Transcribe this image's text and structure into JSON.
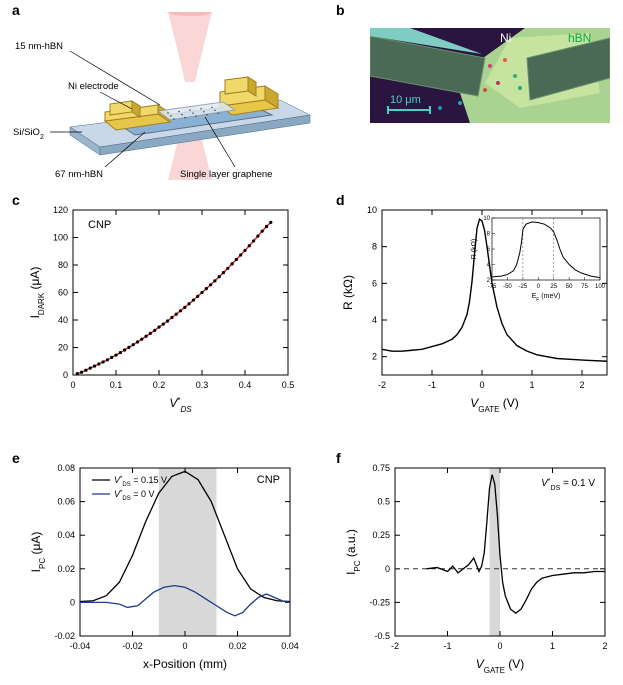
{
  "colors": {
    "bg": "#ffffff",
    "axis": "#000000",
    "line_black": "#000000",
    "line_blue": "#1e3a8a",
    "line_red": "#dc2626",
    "shade": "#d8d8d8",
    "dash": "#333333",
    "substrate": "#c9d8e8",
    "gold": "#e6c74a",
    "hbn_blue": "#7ba8d0",
    "hbn_pale": "#e0e8f0",
    "beam": "#f5a5a5",
    "ni_band": "#4a6a55",
    "hbn_green": "#b8e89a",
    "mag_bg": "#2a1540",
    "scale_teal": "#4dd0c0"
  },
  "panel_a": {
    "label": "a",
    "labels": {
      "top_hbn": "15 nm-hBN",
      "electrode": "Ni electrode",
      "substrate": "Si/SiO₂",
      "bot_hbn": "67 nm-hBN",
      "graphene": "Single layer graphene"
    }
  },
  "panel_b": {
    "label": "b",
    "ni_label": "Ni",
    "hbn_label": "hBN",
    "scale_text": "10 μm"
  },
  "panel_c": {
    "label": "c",
    "annotation": "CNP",
    "xlabel": "V*_DS",
    "ylabel": "I_DARK (μA)",
    "xlim": [
      0,
      0.5
    ],
    "ylim": [
      0,
      120
    ],
    "xticks": [
      0.0,
      0.1,
      0.2,
      0.3,
      0.4,
      0.5
    ],
    "yticks": [
      0,
      20,
      40,
      60,
      80,
      100,
      120
    ],
    "points": [
      [
        0.01,
        1.0
      ],
      [
        0.02,
        2.0
      ],
      [
        0.03,
        3.5
      ],
      [
        0.04,
        5.0
      ],
      [
        0.05,
        6.5
      ],
      [
        0.06,
        8.0
      ],
      [
        0.07,
        9.5
      ],
      [
        0.08,
        11.0
      ],
      [
        0.09,
        12.8
      ],
      [
        0.1,
        14.5
      ],
      [
        0.11,
        16.3
      ],
      [
        0.12,
        18.2
      ],
      [
        0.13,
        20.1
      ],
      [
        0.14,
        22.0
      ],
      [
        0.15,
        24.0
      ],
      [
        0.16,
        26.0
      ],
      [
        0.17,
        28.2
      ],
      [
        0.18,
        30.3
      ],
      [
        0.19,
        32.5
      ],
      [
        0.2,
        34.8
      ],
      [
        0.21,
        37.0
      ],
      [
        0.22,
        39.3
      ],
      [
        0.23,
        41.8
      ],
      [
        0.24,
        44.2
      ],
      [
        0.25,
        46.7
      ],
      [
        0.26,
        49.2
      ],
      [
        0.27,
        51.8
      ],
      [
        0.28,
        54.5
      ],
      [
        0.29,
        57.2
      ],
      [
        0.3,
        60.0
      ],
      [
        0.31,
        62.8
      ],
      [
        0.32,
        65.6
      ],
      [
        0.33,
        68.5
      ],
      [
        0.34,
        71.5
      ],
      [
        0.35,
        74.5
      ],
      [
        0.36,
        77.6
      ],
      [
        0.37,
        80.8
      ],
      [
        0.38,
        84.0
      ],
      [
        0.39,
        87.3
      ],
      [
        0.4,
        90.6
      ],
      [
        0.41,
        94.0
      ],
      [
        0.42,
        97.5
      ],
      [
        0.43,
        101.0
      ],
      [
        0.44,
        104.6
      ],
      [
        0.45,
        108.0
      ],
      [
        0.46,
        111.0
      ]
    ]
  },
  "panel_d": {
    "label": "d",
    "xlabel": "V_GATE (V)",
    "ylabel": "R (kΩ)",
    "xlim": [
      -2,
      2.5
    ],
    "ylim": [
      1,
      10
    ],
    "xticks": [
      -2,
      -1,
      0,
      1,
      2
    ],
    "yticks": [
      2,
      4,
      6,
      8,
      10
    ],
    "curve": [
      [
        -2.0,
        2.4
      ],
      [
        -1.8,
        2.3
      ],
      [
        -1.6,
        2.3
      ],
      [
        -1.4,
        2.35
      ],
      [
        -1.2,
        2.4
      ],
      [
        -1.0,
        2.55
      ],
      [
        -0.8,
        2.7
      ],
      [
        -0.6,
        2.95
      ],
      [
        -0.5,
        3.2
      ],
      [
        -0.4,
        3.6
      ],
      [
        -0.3,
        4.3
      ],
      [
        -0.25,
        5.0
      ],
      [
        -0.2,
        6.1
      ],
      [
        -0.15,
        7.6
      ],
      [
        -0.1,
        9.0
      ],
      [
        -0.05,
        9.5
      ],
      [
        0.0,
        9.4
      ],
      [
        0.05,
        8.9
      ],
      [
        0.1,
        8.0
      ],
      [
        0.15,
        7.0
      ],
      [
        0.2,
        6.0
      ],
      [
        0.3,
        4.7
      ],
      [
        0.4,
        3.8
      ],
      [
        0.5,
        3.2
      ],
      [
        0.7,
        2.6
      ],
      [
        0.9,
        2.3
      ],
      [
        1.1,
        2.1
      ],
      [
        1.3,
        2.0
      ],
      [
        1.5,
        1.9
      ],
      [
        1.8,
        1.85
      ],
      [
        2.1,
        1.8
      ],
      [
        2.5,
        1.75
      ]
    ],
    "inset": {
      "xlabel": "E_F (meV)",
      "ylabel": "R (kΩ)",
      "xlim": [
        -75,
        100
      ],
      "ylim": [
        2,
        10
      ],
      "xticks": [
        -75,
        -50,
        -25,
        0,
        25,
        50,
        75,
        100
      ],
      "yticks": [
        2,
        4,
        6,
        8,
        10
      ],
      "vlines": [
        -25,
        25
      ],
      "curve": [
        [
          -75,
          2.4
        ],
        [
          -60,
          2.5
        ],
        [
          -50,
          2.7
        ],
        [
          -40,
          3.2
        ],
        [
          -35,
          4.0
        ],
        [
          -30,
          5.5
        ],
        [
          -27,
          7.0
        ],
        [
          -25,
          8.5
        ],
        [
          -20,
          9.2
        ],
        [
          -10,
          9.5
        ],
        [
          0,
          9.4
        ],
        [
          10,
          9.2
        ],
        [
          20,
          8.7
        ],
        [
          25,
          8.2
        ],
        [
          30,
          7.2
        ],
        [
          35,
          6.0
        ],
        [
          40,
          5.0
        ],
        [
          50,
          4.0
        ],
        [
          60,
          3.3
        ],
        [
          70,
          2.9
        ],
        [
          85,
          2.5
        ],
        [
          100,
          2.3
        ]
      ]
    }
  },
  "panel_e": {
    "label": "e",
    "xlabel": "x-Position (mm)",
    "ylabel": "I_PC (μA)",
    "annotation": "CNP",
    "legend": {
      "black": "V*_DS = 0.15 V",
      "blue": "V*_DS = 0 V"
    },
    "xlim": [
      -0.04,
      0.04
    ],
    "ylim": [
      -0.02,
      0.08
    ],
    "xticks": [
      -0.04,
      -0.02,
      0,
      0.02,
      0.04
    ],
    "yticks": [
      -0.02,
      0,
      0.02,
      0.04,
      0.06,
      0.08
    ],
    "shade": [
      -0.01,
      0.012
    ],
    "curve_black": [
      [
        -0.04,
        0.0005
      ],
      [
        -0.035,
        0.001
      ],
      [
        -0.03,
        0.004
      ],
      [
        -0.025,
        0.012
      ],
      [
        -0.02,
        0.028
      ],
      [
        -0.015,
        0.048
      ],
      [
        -0.01,
        0.065
      ],
      [
        -0.005,
        0.075
      ],
      [
        0.0,
        0.078
      ],
      [
        0.005,
        0.073
      ],
      [
        0.01,
        0.06
      ],
      [
        0.015,
        0.04
      ],
      [
        0.02,
        0.02
      ],
      [
        0.025,
        0.008
      ],
      [
        0.03,
        0.003
      ],
      [
        0.035,
        0.001
      ],
      [
        0.04,
        0.0005
      ]
    ],
    "curve_blue": [
      [
        -0.04,
        0.0
      ],
      [
        -0.035,
        0.0
      ],
      [
        -0.03,
        0.0
      ],
      [
        -0.025,
        -0.001
      ],
      [
        -0.022,
        -0.003
      ],
      [
        -0.018,
        -0.002
      ],
      [
        -0.015,
        0.002
      ],
      [
        -0.012,
        0.006
      ],
      [
        -0.008,
        0.009
      ],
      [
        -0.004,
        0.01
      ],
      [
        0.0,
        0.009
      ],
      [
        0.004,
        0.006
      ],
      [
        0.008,
        0.002
      ],
      [
        0.012,
        -0.002
      ],
      [
        0.016,
        -0.006
      ],
      [
        0.019,
        -0.008
      ],
      [
        0.022,
        -0.006
      ],
      [
        0.025,
        -0.001
      ],
      [
        0.028,
        0.003
      ],
      [
        0.031,
        0.005
      ],
      [
        0.034,
        0.003
      ],
      [
        0.037,
        0.001
      ],
      [
        0.04,
        0.0
      ]
    ]
  },
  "panel_f": {
    "label": "f",
    "xlabel": "V_GATE (V)",
    "ylabel": "I_PC (a.u.)",
    "annotation": "V*_DS = 0.1 V",
    "xlim": [
      -2,
      2
    ],
    "ylim": [
      -0.5,
      0.75
    ],
    "xticks": [
      -2,
      -1,
      0,
      1,
      2
    ],
    "yticks": [
      -0.5,
      -0.25,
      0,
      0.25,
      0.5,
      0.75
    ],
    "shade": [
      -0.2,
      0.0
    ],
    "curve": [
      [
        -1.4,
        0.0
      ],
      [
        -1.2,
        0.01
      ],
      [
        -1.0,
        -0.02
      ],
      [
        -0.9,
        0.02
      ],
      [
        -0.8,
        -0.03
      ],
      [
        -0.7,
        0.0
      ],
      [
        -0.6,
        0.03
      ],
      [
        -0.5,
        0.08
      ],
      [
        -0.45,
        0.03
      ],
      [
        -0.4,
        -0.02
      ],
      [
        -0.35,
        0.02
      ],
      [
        -0.3,
        0.12
      ],
      [
        -0.25,
        0.35
      ],
      [
        -0.2,
        0.6
      ],
      [
        -0.15,
        0.7
      ],
      [
        -0.1,
        0.63
      ],
      [
        -0.05,
        0.4
      ],
      [
        0.0,
        0.1
      ],
      [
        0.05,
        -0.1
      ],
      [
        0.1,
        -0.2
      ],
      [
        0.2,
        -0.3
      ],
      [
        0.3,
        -0.33
      ],
      [
        0.4,
        -0.3
      ],
      [
        0.5,
        -0.23
      ],
      [
        0.6,
        -0.15
      ],
      [
        0.7,
        -0.1
      ],
      [
        0.8,
        -0.07
      ],
      [
        1.0,
        -0.05
      ],
      [
        1.2,
        -0.04
      ],
      [
        1.4,
        -0.03
      ],
      [
        1.6,
        -0.03
      ],
      [
        1.8,
        -0.02
      ],
      [
        2.0,
        -0.02
      ]
    ]
  }
}
